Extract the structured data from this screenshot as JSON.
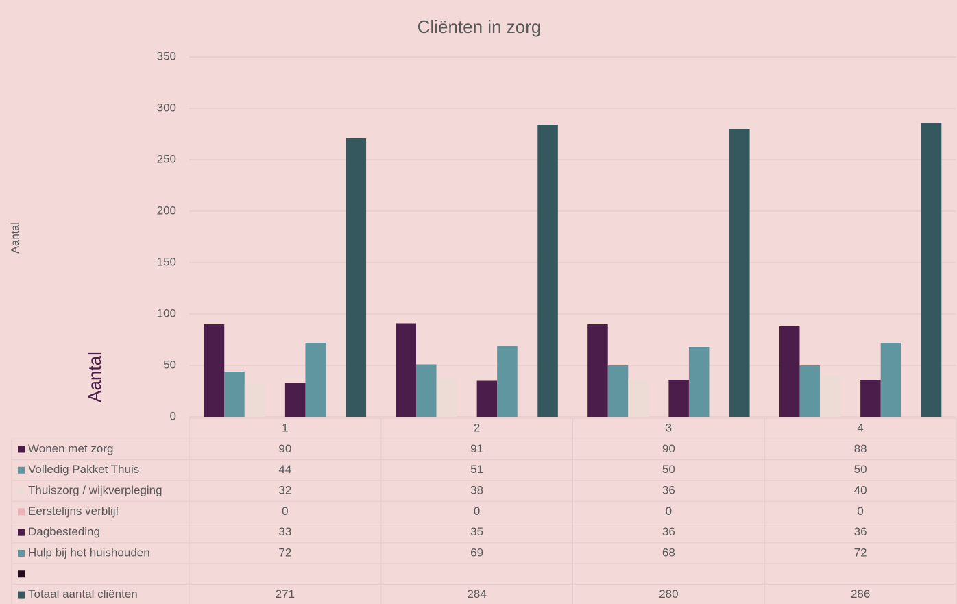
{
  "chart_data": {
    "type": "bar",
    "title": "Cliënten in zorg",
    "ylabel": "Aantal",
    "annotations": [
      "Aantal"
    ],
    "categories": [
      "1",
      "2",
      "3",
      "4"
    ],
    "series": [
      {
        "name": "Wonen met zorg",
        "color": "#4b1d4a",
        "values": [
          90,
          91,
          90,
          88
        ]
      },
      {
        "name": "Volledig Pakket Thuis",
        "color": "#5f96a0",
        "values": [
          44,
          51,
          50,
          50
        ]
      },
      {
        "name": "Thuiszorg / wijkverpleging",
        "color": "#ecdcd5",
        "values": [
          32,
          38,
          36,
          40
        ]
      },
      {
        "name": "Eerstelijns verblijf",
        "color": "#e9b3b7",
        "values": [
          0,
          0,
          0,
          0
        ]
      },
      {
        "name": "Dagbesteding",
        "color": "#4b1d4a",
        "values": [
          33,
          35,
          36,
          36
        ]
      },
      {
        "name": "Hulp bij het huishouden",
        "color": "#5f96a0",
        "values": [
          72,
          69,
          68,
          72
        ]
      },
      {
        "name": null,
        "color": "#220a1a",
        "values": [
          null,
          null,
          null,
          null
        ]
      },
      {
        "name": "Totaal aantal cliënten",
        "color": "#34585e",
        "values": [
          271,
          284,
          280,
          286
        ]
      }
    ],
    "ylim": [
      0,
      350
    ],
    "yticks": [
      0,
      50,
      100,
      150,
      200,
      250,
      300,
      350
    ],
    "grid": true,
    "data_table": true
  }
}
